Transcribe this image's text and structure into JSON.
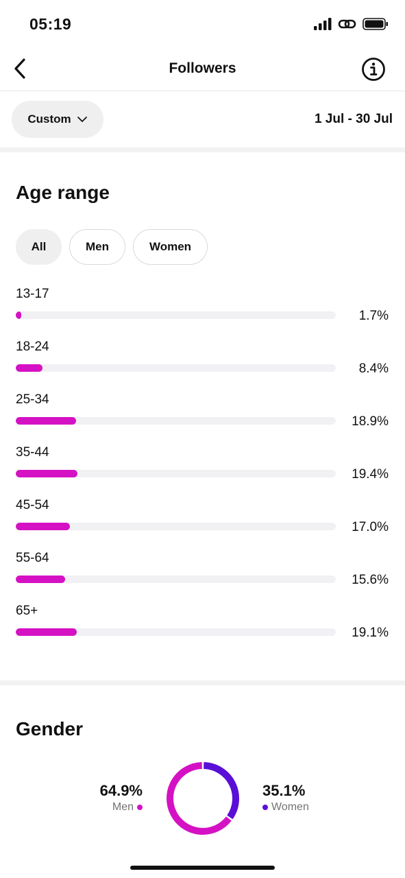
{
  "status_bar": {
    "time": "05:19"
  },
  "nav": {
    "title": "Followers"
  },
  "filter": {
    "dropdown_label": "Custom",
    "date_range": "1 Jul - 30 Jul"
  },
  "age_section": {
    "title": "Age range",
    "chips": [
      {
        "label": "All",
        "selected": true
      },
      {
        "label": "Men",
        "selected": false
      },
      {
        "label": "Women",
        "selected": false
      }
    ],
    "rows": [
      {
        "label": "13-17",
        "value_text": "1.7%",
        "value": 1.7
      },
      {
        "label": "18-24",
        "value_text": "8.4%",
        "value": 8.4
      },
      {
        "label": "25-34",
        "value_text": "18.9%",
        "value": 18.9
      },
      {
        "label": "35-44",
        "value_text": "19.4%",
        "value": 19.4
      },
      {
        "label": "45-54",
        "value_text": "17.0%",
        "value": 17.0
      },
      {
        "label": "55-64",
        "value_text": "15.6%",
        "value": 15.6
      },
      {
        "label": "65+",
        "value_text": "19.1%",
        "value": 19.1
      }
    ],
    "bar_color": "#d511c4"
  },
  "gender_section": {
    "title": "Gender",
    "men": {
      "value_text": "64.9%",
      "label": "Men",
      "value": 64.9,
      "color": "#d511c4"
    },
    "women": {
      "value_text": "35.1%",
      "label": "Women",
      "value": 35.1,
      "color": "#5a0fd6"
    }
  }
}
